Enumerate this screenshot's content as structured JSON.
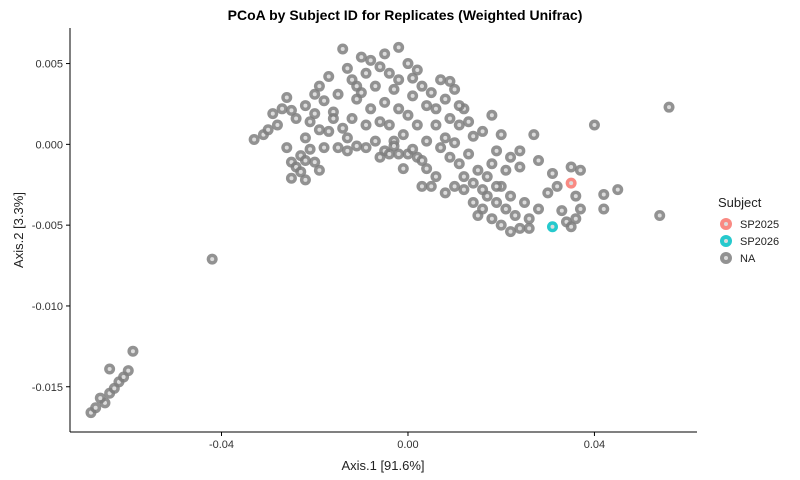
{
  "chart_data": {
    "type": "scatter",
    "title": "PCoA by Subject ID for Replicates (Weighted Unifrac)",
    "xlabel": "Axis.1   [91.6%]",
    "ylabel": "Axis.2   [3.3%]",
    "xlim": [
      -0.0725,
      0.062
    ],
    "ylim": [
      -0.0178,
      0.0072
    ],
    "xticks": [
      -0.04,
      0.0,
      0.04
    ],
    "xtick_labels": [
      "-0.04",
      "0.00",
      "0.04"
    ],
    "yticks": [
      0.005,
      0.0,
      -0.005,
      -0.01,
      -0.015
    ],
    "ytick_labels": [
      "0.005",
      "0.000",
      "-0.005",
      "-0.010",
      "-0.015"
    ],
    "grid": false,
    "legend_position": "right",
    "legend_title": "Subject",
    "series": [
      {
        "name": "SP2025",
        "color": "#F8766D",
        "points": [
          [
            0.035,
            -0.0024
          ]
        ]
      },
      {
        "name": "SP2026",
        "color": "#00BFC4",
        "points": [
          [
            0.031,
            -0.0051
          ]
        ]
      },
      {
        "name": "NA",
        "color": "#7F7F7F",
        "points": [
          [
            -0.068,
            -0.0166
          ],
          [
            -0.067,
            -0.0163
          ],
          [
            -0.065,
            -0.016
          ],
          [
            -0.066,
            -0.0157
          ],
          [
            -0.064,
            -0.0154
          ],
          [
            -0.063,
            -0.0151
          ],
          [
            -0.062,
            -0.0147
          ],
          [
            -0.061,
            -0.0144
          ],
          [
            -0.06,
            -0.014
          ],
          [
            -0.064,
            -0.0139
          ],
          [
            -0.059,
            -0.0128
          ],
          [
            -0.042,
            -0.0071
          ],
          [
            -0.033,
            0.0003
          ],
          [
            -0.031,
            0.0006
          ],
          [
            -0.03,
            0.0009
          ],
          [
            -0.028,
            0.0012
          ],
          [
            -0.029,
            0.0019
          ],
          [
            -0.027,
            0.0022
          ],
          [
            -0.026,
            0.0029
          ],
          [
            -0.025,
            0.0021
          ],
          [
            -0.024,
            0.0016
          ],
          [
            -0.026,
            -0.0002
          ],
          [
            -0.025,
            -0.0011
          ],
          [
            -0.024,
            -0.0014
          ],
          [
            -0.023,
            -0.0007
          ],
          [
            -0.022,
            0.0004
          ],
          [
            -0.021,
            0.0014
          ],
          [
            -0.022,
            0.0024
          ],
          [
            -0.02,
            0.0031
          ],
          [
            -0.019,
            0.0036
          ],
          [
            -0.018,
            0.0027
          ],
          [
            -0.02,
            0.0019
          ],
          [
            -0.019,
            0.0009
          ],
          [
            -0.018,
            -0.0002
          ],
          [
            -0.02,
            -0.0011
          ],
          [
            -0.022,
            -0.0022
          ],
          [
            -0.025,
            -0.0021
          ],
          [
            -0.019,
            -0.0016
          ],
          [
            -0.017,
            0.0042
          ],
          [
            -0.015,
            0.0031
          ],
          [
            -0.016,
            0.002
          ],
          [
            -0.014,
            0.001
          ],
          [
            -0.013,
            -0.0004
          ],
          [
            -0.012,
            0.0016
          ],
          [
            -0.011,
            0.0028
          ],
          [
            -0.012,
            0.004
          ],
          [
            -0.014,
            0.0059
          ],
          [
            -0.013,
            0.0047
          ],
          [
            -0.01,
            0.0054
          ],
          [
            -0.009,
            0.0044
          ],
          [
            -0.01,
            0.0032
          ],
          [
            -0.008,
            0.0022
          ],
          [
            -0.009,
            0.0012
          ],
          [
            -0.007,
            0.0002
          ],
          [
            -0.006,
            0.0014
          ],
          [
            -0.005,
            0.0026
          ],
          [
            -0.007,
            0.0036
          ],
          [
            -0.006,
            0.0048
          ],
          [
            -0.005,
            0.0056
          ],
          [
            -0.004,
            0.0044
          ],
          [
            -0.003,
            0.0034
          ],
          [
            -0.002,
            0.0022
          ],
          [
            -0.004,
            0.0012
          ],
          [
            -0.003,
            0.0002
          ],
          [
            -0.005,
            -0.0004
          ],
          [
            -0.006,
            -0.0008
          ],
          [
            -0.004,
            -0.0006
          ],
          [
            -0.002,
            -0.0006
          ],
          [
            -0.001,
            0.0006
          ],
          [
            0.0,
            0.0018
          ],
          [
            0.001,
            0.003
          ],
          [
            -0.002,
            0.004
          ],
          [
            0.0,
            0.005
          ],
          [
            0.002,
            0.0046
          ],
          [
            0.003,
            0.0036
          ],
          [
            0.004,
            0.0024
          ],
          [
            0.002,
            0.0012
          ],
          [
            0.004,
            0.0002
          ],
          [
            0.006,
            0.0012
          ],
          [
            0.005,
            0.0032
          ],
          [
            0.007,
            0.004
          ],
          [
            0.008,
            0.0028
          ],
          [
            0.009,
            0.0016
          ],
          [
            0.008,
            0.0004
          ],
          [
            0.01,
            0.0001
          ],
          [
            0.011,
            0.0012
          ],
          [
            0.012,
            0.0022
          ],
          [
            0.01,
            0.0034
          ],
          [
            0.009,
            0.0039
          ],
          [
            0.006,
            0.0022
          ],
          [
            0.001,
            0.0041
          ],
          [
            -0.002,
            0.006
          ],
          [
            -0.008,
            0.0052
          ],
          [
            -0.011,
            0.0036
          ],
          [
            0.0,
            -0.0006
          ],
          [
            0.002,
            -0.0008
          ],
          [
            0.004,
            -0.0015
          ],
          [
            0.006,
            -0.002
          ],
          [
            0.003,
            -0.001
          ],
          [
            0.001,
            -0.0003
          ],
          [
            0.007,
            -0.0002
          ],
          [
            0.009,
            -0.0008
          ],
          [
            0.011,
            -0.0012
          ],
          [
            0.013,
            -0.0006
          ],
          [
            0.014,
            0.0005
          ],
          [
            0.013,
            0.0014
          ],
          [
            0.015,
            -0.0016
          ],
          [
            0.012,
            -0.002
          ],
          [
            0.01,
            -0.0026
          ],
          [
            0.008,
            -0.003
          ],
          [
            0.012,
            -0.0028
          ],
          [
            0.014,
            -0.0024
          ],
          [
            0.016,
            -0.0028
          ],
          [
            0.017,
            -0.002
          ],
          [
            0.018,
            -0.0012
          ],
          [
            0.019,
            -0.0004
          ],
          [
            0.017,
            -0.0032
          ],
          [
            0.019,
            -0.0036
          ],
          [
            0.02,
            -0.0026
          ],
          [
            0.022,
            -0.0032
          ],
          [
            0.021,
            -0.004
          ],
          [
            0.023,
            -0.0044
          ],
          [
            0.025,
            -0.0036
          ],
          [
            0.018,
            -0.0046
          ],
          [
            0.02,
            -0.005
          ],
          [
            0.016,
            -0.004
          ],
          [
            0.014,
            -0.0036
          ],
          [
            0.022,
            -0.0054
          ],
          [
            0.024,
            -0.0052
          ],
          [
            0.026,
            -0.0046
          ],
          [
            0.026,
            -0.0052
          ],
          [
            0.028,
            -0.004
          ],
          [
            0.03,
            -0.003
          ],
          [
            0.032,
            -0.0026
          ],
          [
            0.031,
            -0.0018
          ],
          [
            0.033,
            -0.0041
          ],
          [
            0.034,
            -0.0048
          ],
          [
            0.035,
            -0.0051
          ],
          [
            0.036,
            -0.0046
          ],
          [
            0.036,
            -0.0032
          ],
          [
            0.037,
            -0.004
          ],
          [
            0.035,
            -0.0014
          ],
          [
            0.037,
            -0.0016
          ],
          [
            0.04,
            0.0012
          ],
          [
            0.042,
            -0.0031
          ],
          [
            0.042,
            -0.004
          ],
          [
            0.045,
            -0.0028
          ],
          [
            0.054,
            -0.0044
          ],
          [
            0.056,
            0.0023
          ],
          [
            0.028,
            -0.001
          ],
          [
            0.024,
            -0.0014
          ],
          [
            0.022,
            -0.0008
          ],
          [
            0.027,
            0.0006
          ],
          [
            0.024,
            -0.0004
          ],
          [
            0.02,
            0.0006
          ],
          [
            0.018,
            0.0018
          ],
          [
            0.016,
            0.0008
          ],
          [
            0.011,
            0.0024
          ],
          [
            0.003,
            -0.0026
          ],
          [
            0.005,
            -0.0026
          ],
          [
            -0.001,
            -0.0015
          ],
          [
            -0.003,
            -0.0001
          ],
          [
            -0.009,
            -0.0002
          ],
          [
            -0.011,
            -0.0001
          ],
          [
            -0.013,
            0.0004
          ],
          [
            -0.015,
            -0.0002
          ],
          [
            -0.016,
            0.0016
          ],
          [
            -0.017,
            0.0008
          ],
          [
            -0.021,
            -0.0003
          ],
          [
            -0.022,
            -0.001
          ],
          [
            -0.023,
            -0.0017
          ],
          [
            0.015,
            -0.0044
          ],
          [
            0.019,
            -0.0026
          ],
          [
            0.021,
            -0.0016
          ]
        ]
      }
    ]
  }
}
